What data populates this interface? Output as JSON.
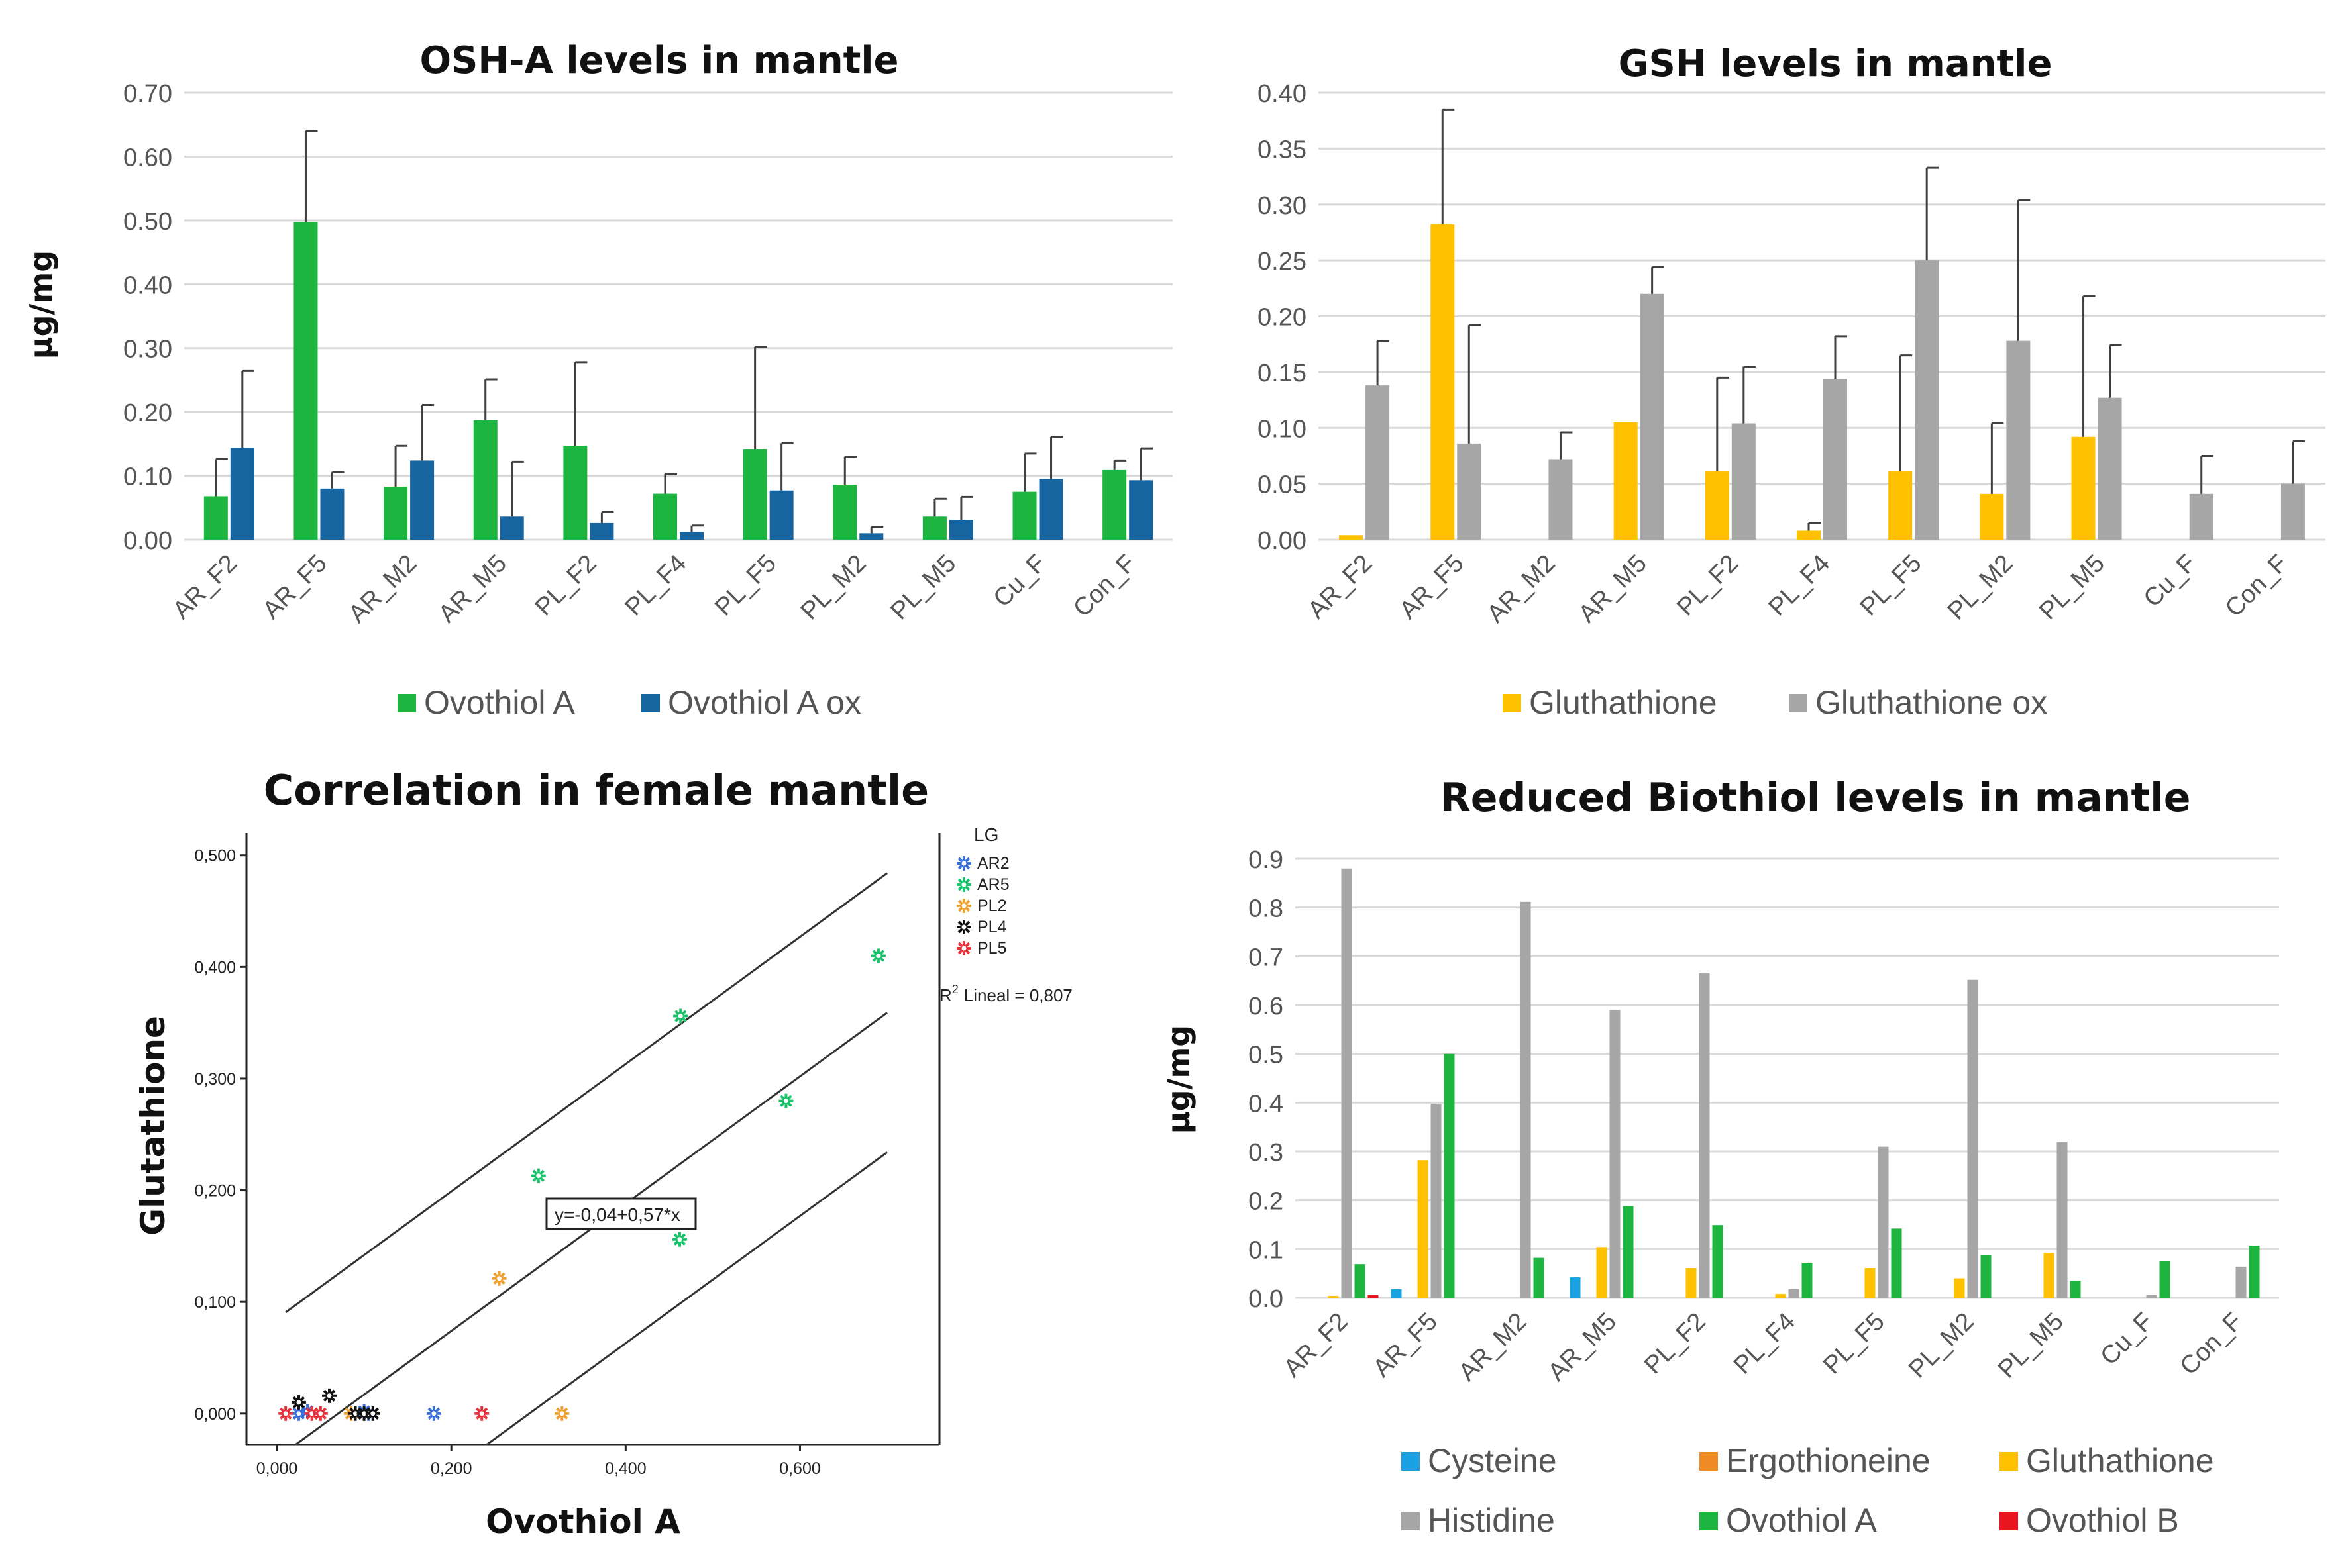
{
  "chart_data": [
    {
      "type": "bar",
      "title": "OSH-A levels in mantle",
      "ylabel": "µg/mg",
      "xlabel": "",
      "ylim": [
        0,
        0.7
      ],
      "yticks": [
        "0.00",
        "0.10",
        "0.20",
        "0.30",
        "0.40",
        "0.50",
        "0.60",
        "0.70"
      ],
      "categories": [
        "AR_F2",
        "AR_F5",
        "AR_M2",
        "AR_M5",
        "PL_F2",
        "PL_F4",
        "PL_F5",
        "PL_M2",
        "PL_M5",
        "Cu_F",
        "Con_F"
      ],
      "series": [
        {
          "name": "Ovothiol A",
          "color": "#1db43f",
          "values": [
            0.068,
            0.497,
            0.083,
            0.187,
            0.147,
            0.072,
            0.142,
            0.086,
            0.036,
            0.075,
            0.109
          ],
          "errors": [
            0.058,
            0.143,
            0.064,
            0.064,
            0.131,
            0.031,
            0.16,
            0.044,
            0.028,
            0.06,
            0.015
          ]
        },
        {
          "name": "Ovothiol A ox",
          "color": "#1664a0",
          "values": [
            0.144,
            0.08,
            0.124,
            0.036,
            0.026,
            0.012,
            0.077,
            0.01,
            0.031,
            0.095,
            0.093
          ],
          "errors": [
            0.12,
            0.026,
            0.087,
            0.086,
            0.017,
            0.01,
            0.074,
            0.01,
            0.036,
            0.066,
            0.05
          ]
        }
      ]
    },
    {
      "type": "bar",
      "title": "GSH levels in mantle",
      "ylabel": "",
      "xlabel": "",
      "ylim": [
        0,
        0.4
      ],
      "yticks": [
        "0.00",
        "0.05",
        "0.10",
        "0.15",
        "0.20",
        "0.25",
        "0.30",
        "0.35",
        "0.40"
      ],
      "categories": [
        "AR_F2",
        "AR_F5",
        "AR_M2",
        "AR_M5",
        "PL_F2",
        "PL_F4",
        "PL_F5",
        "PL_M2",
        "PL_M5",
        "Cu_F",
        "Con_F"
      ],
      "series": [
        {
          "name": "Gluthathione",
          "color": "#ffc000",
          "values": [
            0.004,
            0.282,
            0.0,
            0.105,
            0.061,
            0.008,
            0.061,
            0.041,
            0.092,
            0.0,
            0.0
          ],
          "errors": [
            0,
            0.103,
            0,
            0,
            0.084,
            0.007,
            0.104,
            0.063,
            0.126,
            0,
            0
          ]
        },
        {
          "name": "Gluthathione ox",
          "color": "#a6a6a6",
          "values": [
            0.138,
            0.086,
            0.072,
            0.22,
            0.104,
            0.144,
            0.25,
            0.178,
            0.127,
            0.041,
            0.05
          ],
          "errors": [
            0.04,
            0.106,
            0.024,
            0.024,
            0.051,
            0.038,
            0.083,
            0.126,
            0.047,
            0.034,
            0.038
          ]
        }
      ]
    },
    {
      "type": "scatter",
      "title": "Correlation in female mantle",
      "xlabel": "Ovothiol A",
      "ylabel": "Glutathione",
      "xlim": [
        -0.035,
        0.76
      ],
      "ylim": [
        -0.028,
        0.52
      ],
      "xticks": [
        "0,000",
        "0,200",
        "0,400",
        "0,600"
      ],
      "yticks": [
        "0,000",
        "0,100",
        "0,200",
        "0,300",
        "0,400",
        "0,500"
      ],
      "legend_title": "LG",
      "r2_label": "Lineal = 0,807",
      "r2_prefix": "R",
      "r2_exp": "2",
      "equation": "y=-0,04+0,57*x",
      "fit": {
        "intercept": -0.04,
        "slope": 0.57,
        "band": 0.125,
        "x_start": 0.01,
        "x_end": 0.7
      },
      "groups": [
        {
          "name": "AR2",
          "color": "#3a6fd8",
          "points": [
            [
              0.025,
              0.0
            ],
            [
              0.035,
              0.002
            ],
            [
              0.1,
              0.002
            ],
            [
              0.105,
              0.0
            ],
            [
              0.18,
              0.0
            ]
          ]
        },
        {
          "name": "AR5",
          "color": "#17c46a",
          "points": [
            [
              0.3,
              0.213
            ],
            [
              0.462,
              0.156
            ],
            [
              0.463,
              0.356
            ],
            [
              0.584,
              0.28
            ],
            [
              0.69,
              0.41
            ]
          ]
        },
        {
          "name": "PL2",
          "color": "#f0a030",
          "points": [
            [
              0.085,
              0.0
            ],
            [
              0.255,
              0.121
            ],
            [
              0.327,
              0.0
            ]
          ]
        },
        {
          "name": "PL4",
          "color": "#111111",
          "points": [
            [
              0.025,
              0.01
            ],
            [
              0.06,
              0.016
            ],
            [
              0.09,
              0.0
            ],
            [
              0.1,
              0.0
            ],
            [
              0.11,
              0.0
            ]
          ]
        },
        {
          "name": "PL5",
          "color": "#e8323c",
          "points": [
            [
              0.01,
              0.0
            ],
            [
              0.04,
              0.0
            ],
            [
              0.05,
              0.0
            ],
            [
              0.235,
              0.0
            ]
          ]
        }
      ]
    },
    {
      "type": "bar",
      "title": "Reduced Biothiol levels in mantle",
      "ylabel": "µg/mg",
      "xlabel": "",
      "ylim": [
        0,
        0.9
      ],
      "yticks": [
        "0.0",
        "0.1",
        "0.2",
        "0.3",
        "0.4",
        "0.5",
        "0.6",
        "0.7",
        "0.8",
        "0.9"
      ],
      "categories": [
        "AR_F2",
        "AR_F5",
        "AR_M2",
        "AR_M5",
        "PL_F2",
        "PL_F4",
        "PL_F5",
        "PL_M2",
        "PL_M5",
        "Cu_F",
        "Con_F"
      ],
      "series": [
        {
          "name": "Cysteine",
          "color": "#1ba1e2",
          "values": [
            0.0,
            0.018,
            0.0,
            0.042,
            0.0,
            0.0,
            0.0,
            0.0,
            0.0,
            0.0,
            0.0
          ]
        },
        {
          "name": "Ergothioneine",
          "color": "#f08a24",
          "values": [
            0.0,
            0.0,
            0.0,
            0.0,
            0.0,
            0.0,
            0.0,
            0.0,
            0.0,
            0.0,
            0.0
          ]
        },
        {
          "name": "Gluthathione",
          "color": "#ffc000",
          "values": [
            0.004,
            0.282,
            0.0,
            0.104,
            0.061,
            0.008,
            0.061,
            0.04,
            0.092,
            0.0,
            0.0
          ]
        },
        {
          "name": "Histidine",
          "color": "#a6a6a6",
          "values": [
            0.88,
            0.397,
            0.812,
            0.59,
            0.665,
            0.018,
            0.31,
            0.652,
            0.32,
            0.006,
            0.064
          ]
        },
        {
          "name": "Ovothiol A",
          "color": "#1db43f",
          "values": [
            0.069,
            0.5,
            0.082,
            0.188,
            0.149,
            0.072,
            0.142,
            0.087,
            0.035,
            0.076,
            0.107
          ]
        },
        {
          "name": "Ovothiol B",
          "color": "#e8161e",
          "values": [
            0.006,
            0.0,
            0.0,
            0.0,
            0.0,
            0.0,
            0.0,
            0.0,
            0.0,
            0.0,
            0.0
          ]
        }
      ]
    }
  ]
}
